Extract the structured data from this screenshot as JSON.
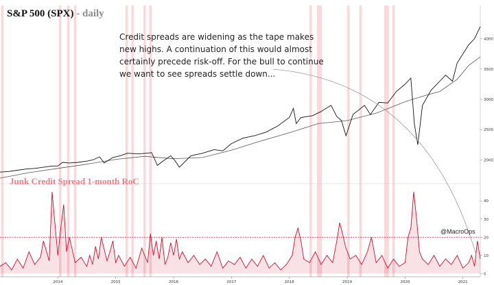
{
  "title": {
    "main": "S&P 500 (SPX)",
    "suffix": " - daily"
  },
  "annotation": [
    "Credit spreads are widening as the tape makes",
    "new highs. A continuation of this would almost",
    "certainly precede risk-off. For the bull to continue",
    "we want to see spreads settle down..."
  ],
  "subtitle": "Junk Credit Spread 1-month RoC",
  "watermark": "@MacroOps",
  "colors": {
    "price": "#111111",
    "ma": "#555555",
    "rate": "#c8102e",
    "band": "#f3b8bd",
    "threshold": "#c8102e",
    "subtitle": "#e8808a"
  },
  "chart_data": [
    {
      "type": "line",
      "title": "S&P 500 (SPX) - daily",
      "x_ticks": [
        "2014",
        "2015",
        "2016",
        "2017",
        "2018",
        "2019",
        "2020",
        "2021"
      ],
      "x_tick_dates": [
        2014.0,
        2015.0,
        2016.0,
        2017.0,
        2018.0,
        2019.0,
        2020.0,
        2021.0
      ],
      "y_ticks": [
        2000,
        2500,
        3000,
        3500,
        4000
      ],
      "ylim": [
        1700,
        4300
      ],
      "series": [
        {
          "role": "price",
          "x": [
            2013.0,
            2013.15,
            2013.3,
            2013.45,
            2013.6,
            2013.75,
            2013.9,
            2014.0,
            2014.08,
            2014.2,
            2014.35,
            2014.5,
            2014.6,
            2014.72,
            2014.8,
            2014.95,
            2015.08,
            2015.2,
            2015.4,
            2015.52,
            2015.62,
            2015.72,
            2015.8,
            2015.95,
            2016.03,
            2016.1,
            2016.3,
            2016.5,
            2016.7,
            2016.85,
            2017.0,
            2017.2,
            2017.4,
            2017.6,
            2017.8,
            2018.0,
            2018.07,
            2018.12,
            2018.2,
            2018.4,
            2018.55,
            2018.72,
            2018.82,
            2018.9,
            2018.98,
            2019.1,
            2019.3,
            2019.4,
            2019.55,
            2019.7,
            2019.85,
            2020.0,
            2020.1,
            2020.16,
            2020.22,
            2020.3,
            2020.45,
            2020.6,
            2020.7,
            2020.82,
            2020.9,
            2021.0,
            2021.1,
            2021.2,
            2021.3
          ],
          "y": [
            1800,
            1810,
            1830,
            1850,
            1860,
            1880,
            1900,
            1900,
            1960,
            1950,
            1960,
            1980,
            2000,
            2050,
            1950,
            2040,
            2070,
            2110,
            2100,
            2110,
            2120,
            1910,
            1970,
            2070,
            1980,
            1880,
            2070,
            2110,
            2170,
            2150,
            2270,
            2360,
            2400,
            2460,
            2560,
            2700,
            2850,
            2600,
            2700,
            2730,
            2800,
            2900,
            2720,
            2650,
            2400,
            2750,
            2900,
            2750,
            2950,
            2940,
            3130,
            3250,
            3350,
            2600,
            2250,
            2900,
            3150,
            3300,
            3400,
            3300,
            3600,
            3750,
            3900,
            4000,
            4200
          ]
        },
        {
          "role": "moving-average",
          "x": [
            2013.0,
            2013.5,
            2014.0,
            2014.5,
            2015.0,
            2015.5,
            2016.0,
            2016.5,
            2017.0,
            2017.5,
            2018.0,
            2018.5,
            2019.0,
            2019.5,
            2020.0,
            2020.3,
            2020.6,
            2020.9,
            2021.1,
            2021.3
          ],
          "y": [
            1700,
            1790,
            1860,
            1930,
            2010,
            2060,
            2020,
            2040,
            2160,
            2310,
            2450,
            2600,
            2650,
            2770,
            2960,
            3050,
            3130,
            3330,
            3560,
            3700
          ]
        }
      ]
    },
    {
      "type": "area",
      "title": "Junk Credit Spread 1-month RoC",
      "y_ticks": [
        0,
        10,
        20,
        30,
        40
      ],
      "ylim": [
        -1,
        48
      ],
      "threshold": 20,
      "series": [
        {
          "x": [
            2013.0,
            2013.1,
            2013.2,
            2013.3,
            2013.4,
            2013.5,
            2013.6,
            2013.7,
            2013.75,
            2013.85,
            2013.9,
            2014.0,
            2014.05,
            2014.1,
            2014.15,
            2014.2,
            2014.3,
            2014.4,
            2014.5,
            2014.55,
            2014.6,
            2014.65,
            2014.7,
            2014.75,
            2014.85,
            2014.9,
            2014.95,
            2015.0,
            2015.05,
            2015.15,
            2015.25,
            2015.35,
            2015.45,
            2015.55,
            2015.6,
            2015.65,
            2015.7,
            2015.75,
            2015.8,
            2015.85,
            2015.9,
            2015.95,
            2016.0,
            2016.05,
            2016.1,
            2016.15,
            2016.25,
            2016.35,
            2016.45,
            2016.55,
            2016.65,
            2016.75,
            2016.85,
            2016.95,
            2017.05,
            2017.15,
            2017.25,
            2017.35,
            2017.45,
            2017.55,
            2017.65,
            2017.75,
            2017.85,
            2017.95,
            2018.05,
            2018.1,
            2018.15,
            2018.2,
            2018.25,
            2018.35,
            2018.45,
            2018.55,
            2018.65,
            2018.75,
            2018.82,
            2018.87,
            2018.92,
            2018.97,
            2019.05,
            2019.15,
            2019.25,
            2019.35,
            2019.42,
            2019.5,
            2019.6,
            2019.7,
            2019.8,
            2019.9,
            2020.0,
            2020.05,
            2020.1,
            2020.15,
            2020.2,
            2020.25,
            2020.3,
            2020.4,
            2020.5,
            2020.6,
            2020.7,
            2020.8,
            2020.9,
            2021.0,
            2021.1,
            2021.15,
            2021.2,
            2021.25,
            2021.3
          ],
          "y": [
            4,
            6,
            2,
            8,
            3,
            12,
            5,
            9,
            18,
            7,
            45,
            10,
            25,
            38,
            12,
            20,
            6,
            9,
            4,
            10,
            5,
            15,
            8,
            20,
            7,
            12,
            18,
            6,
            10,
            4,
            9,
            3,
            14,
            6,
            22,
            10,
            18,
            8,
            20,
            5,
            9,
            17,
            10,
            19,
            8,
            12,
            6,
            10,
            5,
            8,
            4,
            12,
            3,
            7,
            5,
            9,
            3,
            8,
            4,
            10,
            3,
            6,
            2,
            5,
            10,
            20,
            25,
            18,
            8,
            6,
            12,
            5,
            10,
            6,
            18,
            28,
            22,
            15,
            8,
            10,
            5,
            12,
            20,
            6,
            10,
            3,
            8,
            4,
            6,
            20,
            25,
            45,
            30,
            12,
            8,
            5,
            10,
            4,
            8,
            5,
            10,
            3,
            6,
            10,
            4,
            18,
            8
          ]
        }
      ]
    }
  ],
  "stress_periods": [
    {
      "from": 2013.02,
      "to": 2013.06
    },
    {
      "from": 2014.02,
      "to": 2014.06
    },
    {
      "from": 2014.16,
      "to": 2014.2
    },
    {
      "from": 2014.28,
      "to": 2014.32
    },
    {
      "from": 2015.17,
      "to": 2015.21
    },
    {
      "from": 2015.27,
      "to": 2015.31
    },
    {
      "from": 2015.48,
      "to": 2015.52
    },
    {
      "from": 2015.58,
      "to": 2015.62
    },
    {
      "from": 2018.35,
      "to": 2018.39
    },
    {
      "from": 2018.48,
      "to": 2018.56
    },
    {
      "from": 2019.0,
      "to": 2019.04
    },
    {
      "from": 2019.21,
      "to": 2019.25
    },
    {
      "from": 2019.64,
      "to": 2019.72
    },
    {
      "from": 2019.78,
      "to": 2019.82
    }
  ]
}
